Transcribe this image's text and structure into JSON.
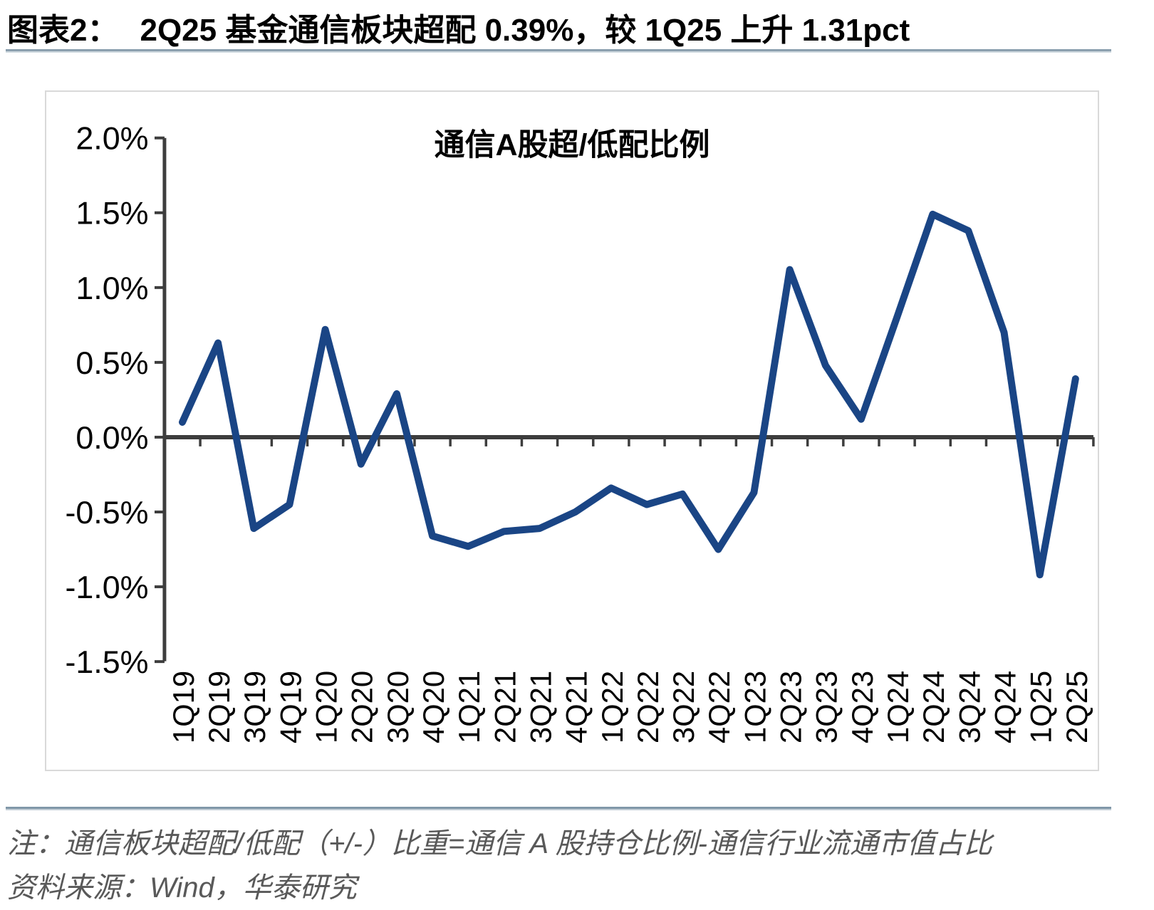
{
  "figure": {
    "label": "图表2：",
    "title": "2Q25 基金通信板块超配 0.39%，较 1Q25 上升 1.31pct"
  },
  "chart_data": {
    "type": "line",
    "title": "通信A股超/低配比例",
    "categories": [
      "1Q19",
      "2Q19",
      "3Q19",
      "4Q19",
      "1Q20",
      "2Q20",
      "3Q20",
      "4Q20",
      "1Q21",
      "2Q21",
      "3Q21",
      "4Q21",
      "1Q22",
      "2Q22",
      "3Q22",
      "4Q22",
      "1Q23",
      "2Q23",
      "3Q23",
      "4Q23",
      "1Q24",
      "2Q24",
      "3Q24",
      "4Q24",
      "1Q25",
      "2Q25"
    ],
    "series": [
      {
        "name": "通信A股超/低配比例",
        "values": [
          0.1,
          0.63,
          -0.61,
          -0.45,
          0.72,
          -0.18,
          0.29,
          -0.66,
          -0.73,
          -0.63,
          -0.61,
          -0.5,
          -0.34,
          -0.45,
          -0.38,
          -0.75,
          -0.37,
          1.12,
          0.48,
          0.12,
          0.8,
          1.49,
          1.38,
          0.7,
          -0.92,
          0.39
        ]
      }
    ],
    "xlabel": "",
    "ylabel": "",
    "ylim": [
      -1.5,
      2.0
    ],
    "y_ticks": [
      {
        "label": "2.0%",
        "value": 2.0
      },
      {
        "label": "1.5%",
        "value": 1.5
      },
      {
        "label": "1.0%",
        "value": 1.0
      },
      {
        "label": "0.5%",
        "value": 0.5
      },
      {
        "label": "0.0%",
        "value": 0.0
      },
      {
        "label": "-0.5%",
        "value": -0.5
      },
      {
        "label": "-1.0%",
        "value": -1.0
      },
      {
        "label": "-1.5%",
        "value": -1.5
      }
    ],
    "grid": false,
    "legend_position": "none",
    "x_tick_rotation": -90,
    "line_color": "#1a4585",
    "axis_color": "#3d3d3d"
  },
  "footer": {
    "note": "注：通信板块超配/低配（+/-）比重=通信 A 股持仓比例-通信行业流通市值占比",
    "source": "资料来源：Wind，华泰研究"
  }
}
